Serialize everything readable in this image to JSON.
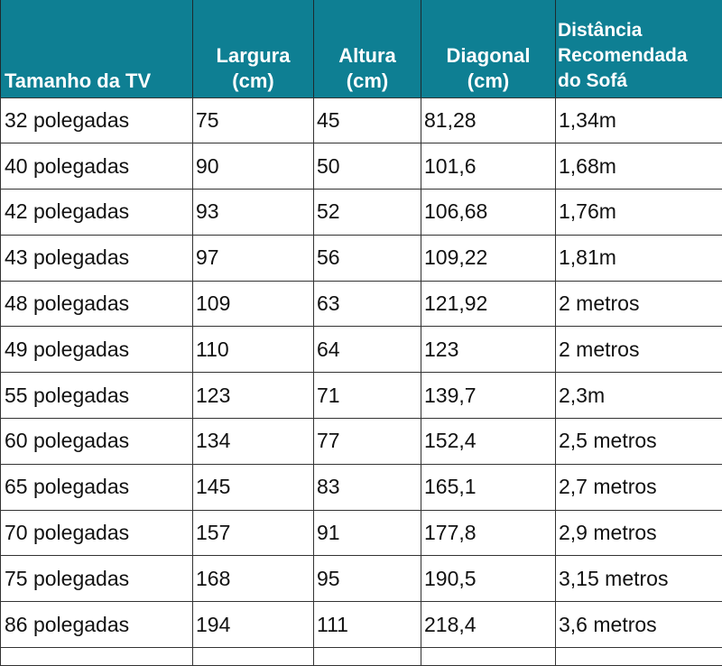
{
  "table": {
    "headers": [
      "Tamanho da TV",
      "Largura (cm)",
      "Altura (cm)",
      "Diagonal (cm)",
      "Distância Recomendada do Sofá"
    ],
    "header_lines": {
      "h0": [
        "Tamanho da TV"
      ],
      "h1": [
        "Largura",
        "(cm)"
      ],
      "h2": [
        "Altura",
        "(cm)"
      ],
      "h3": [
        "Diagonal",
        "(cm)"
      ],
      "h4": [
        "Distância",
        "Recomendada",
        "do Sofá"
      ]
    },
    "header_color": "#0e7f93",
    "rows": [
      [
        "32 polegadas",
        "75",
        "45",
        "81,28",
        "1,34m"
      ],
      [
        "40 polegadas",
        "90",
        "50",
        "101,6",
        "1,68m"
      ],
      [
        "42 polegadas",
        "93",
        "52",
        "106,68",
        "1,76m"
      ],
      [
        "43 polegadas",
        "97",
        "56",
        "109,22",
        "1,81m"
      ],
      [
        "48 polegadas",
        "109",
        "63",
        "121,92",
        "2 metros"
      ],
      [
        "49 polegadas",
        "110",
        "64",
        "123",
        "2 metros"
      ],
      [
        "55 polegadas",
        "123",
        "71",
        "139,7",
        "2,3m"
      ],
      [
        "60 polegadas",
        "134",
        "77",
        "152,4",
        "2,5 metros"
      ],
      [
        "65 polegadas",
        "145",
        "83",
        "165,1",
        "2,7 metros"
      ],
      [
        "70 polegadas",
        "157",
        "91",
        "177,8",
        "2,9 metros"
      ],
      [
        "75 polegadas",
        "168",
        "95",
        "190,5",
        "3,15 metros"
      ],
      [
        "86 polegadas",
        "194",
        "111",
        "218,4",
        "3,6 metros"
      ]
    ]
  }
}
